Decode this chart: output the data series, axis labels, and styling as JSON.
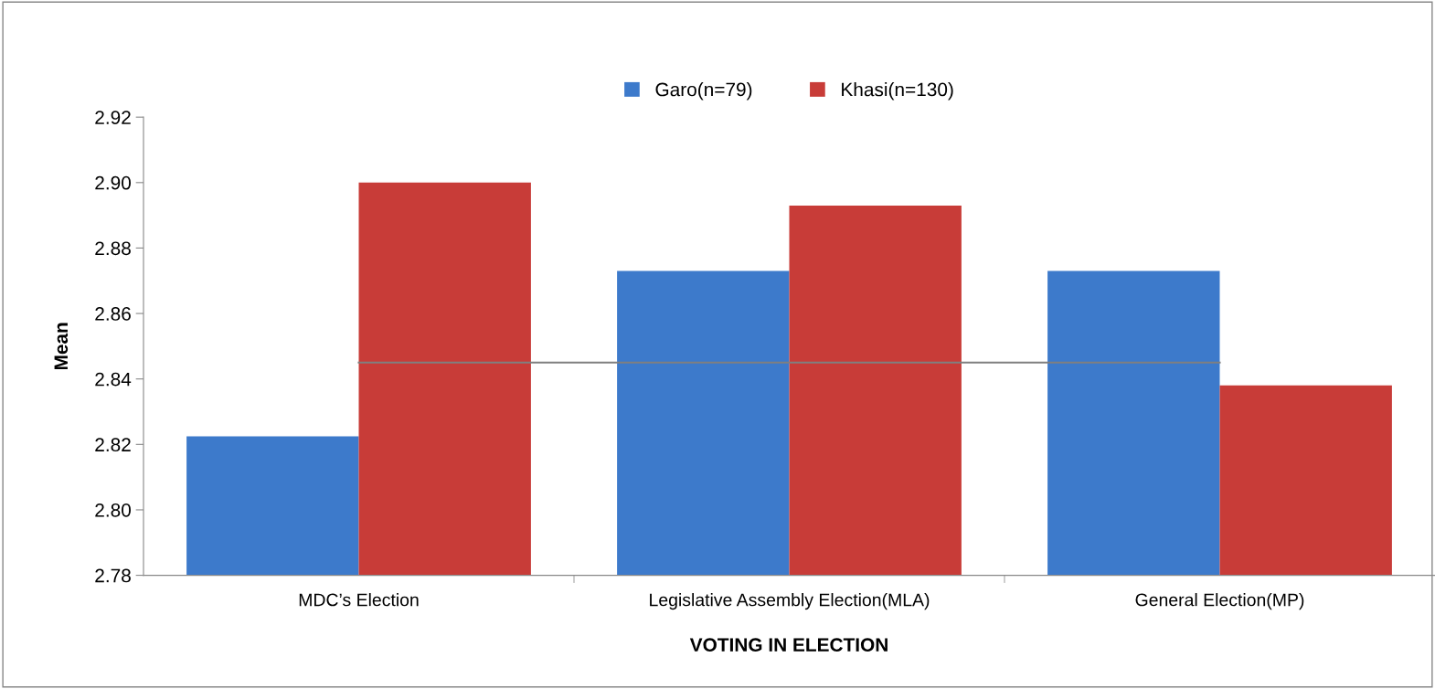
{
  "chart_data": {
    "type": "bar",
    "xlabel": "VOTING IN ELECTION",
    "ylabel": "Mean",
    "categories": [
      "MDC’s Election",
      "Legislative Assembly Election(MLA)",
      "General Election(MP)"
    ],
    "series": [
      {
        "name": "Garo(n=79)",
        "color": "#3d7acb",
        "values": [
          2.8225,
          2.873,
          2.873
        ]
      },
      {
        "name": "Khasi(n=130)",
        "color": "#c83c38",
        "values": [
          2.9,
          2.893,
          2.838
        ]
      },
      {
        "type": "line",
        "color": "#7f7f7f",
        "values": [
          2.845,
          2.845,
          2.845
        ]
      }
    ],
    "ylim": [
      2.78,
      2.92
    ],
    "yticks": [
      {
        "value": 2.78,
        "label": "2.78"
      },
      {
        "value": 2.8,
        "label": "2.80"
      },
      {
        "value": 2.82,
        "label": "2.82"
      },
      {
        "value": 2.84,
        "label": "2.84"
      },
      {
        "value": 2.86,
        "label": "2.86"
      },
      {
        "value": 2.88,
        "label": "2.88"
      },
      {
        "value": 2.9,
        "label": "2.90"
      },
      {
        "value": 2.92,
        "label": "2.92"
      }
    ],
    "grid": false,
    "legend": "top"
  }
}
